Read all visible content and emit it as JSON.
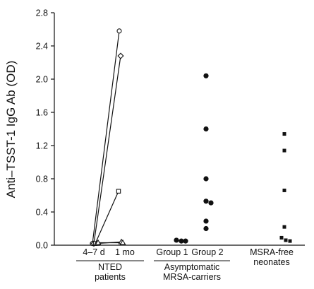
{
  "chart_data": {
    "type": "scatter",
    "ylabel": "Anti–TSST-1 IgG Ab (OD)",
    "ylim": [
      0,
      2.8
    ],
    "yticks": [
      "0.0",
      "0.4",
      "0.8",
      "1.2",
      "1.6",
      "2.0",
      "2.4",
      "2.8"
    ],
    "grid": false,
    "legend": "none",
    "x_tick_labels": [
      "4–7 d",
      "1 mo",
      "Group 1",
      "Group 2"
    ],
    "group_labels": [
      {
        "lines": [
          "NTED",
          "patients"
        ]
      },
      {
        "lines": [
          "Asymptomatic",
          "MRSA-carriers"
        ]
      },
      {
        "lines": [
          "MSRA-free",
          "neonates"
        ]
      }
    ],
    "nted_pairs": [
      {
        "marker": "open-circle",
        "values": [
          0.02,
          2.58
        ]
      },
      {
        "marker": "open-diamond",
        "values": [
          0.02,
          2.28
        ]
      },
      {
        "marker": "open-square",
        "values": [
          0.02,
          0.65
        ]
      },
      {
        "marker": "open-triangle",
        "values": [
          0.02,
          0.04
        ]
      },
      {
        "marker": "open-triangle",
        "values": [
          0.03,
          0.03
        ]
      }
    ],
    "series": [
      {
        "group": "Group 1",
        "marker": "filled-circle",
        "values": [
          0.06,
          0.05,
          0.05
        ]
      },
      {
        "group": "Group 2",
        "marker": "filled-circle",
        "values": [
          2.04,
          1.4,
          0.8,
          0.53,
          0.51,
          0.29,
          0.2
        ]
      },
      {
        "group": "MSRA-free neonates",
        "marker": "filled-square",
        "values": [
          1.34,
          1.14,
          0.66,
          0.22,
          0.09,
          0.06,
          0.05
        ]
      }
    ]
  }
}
